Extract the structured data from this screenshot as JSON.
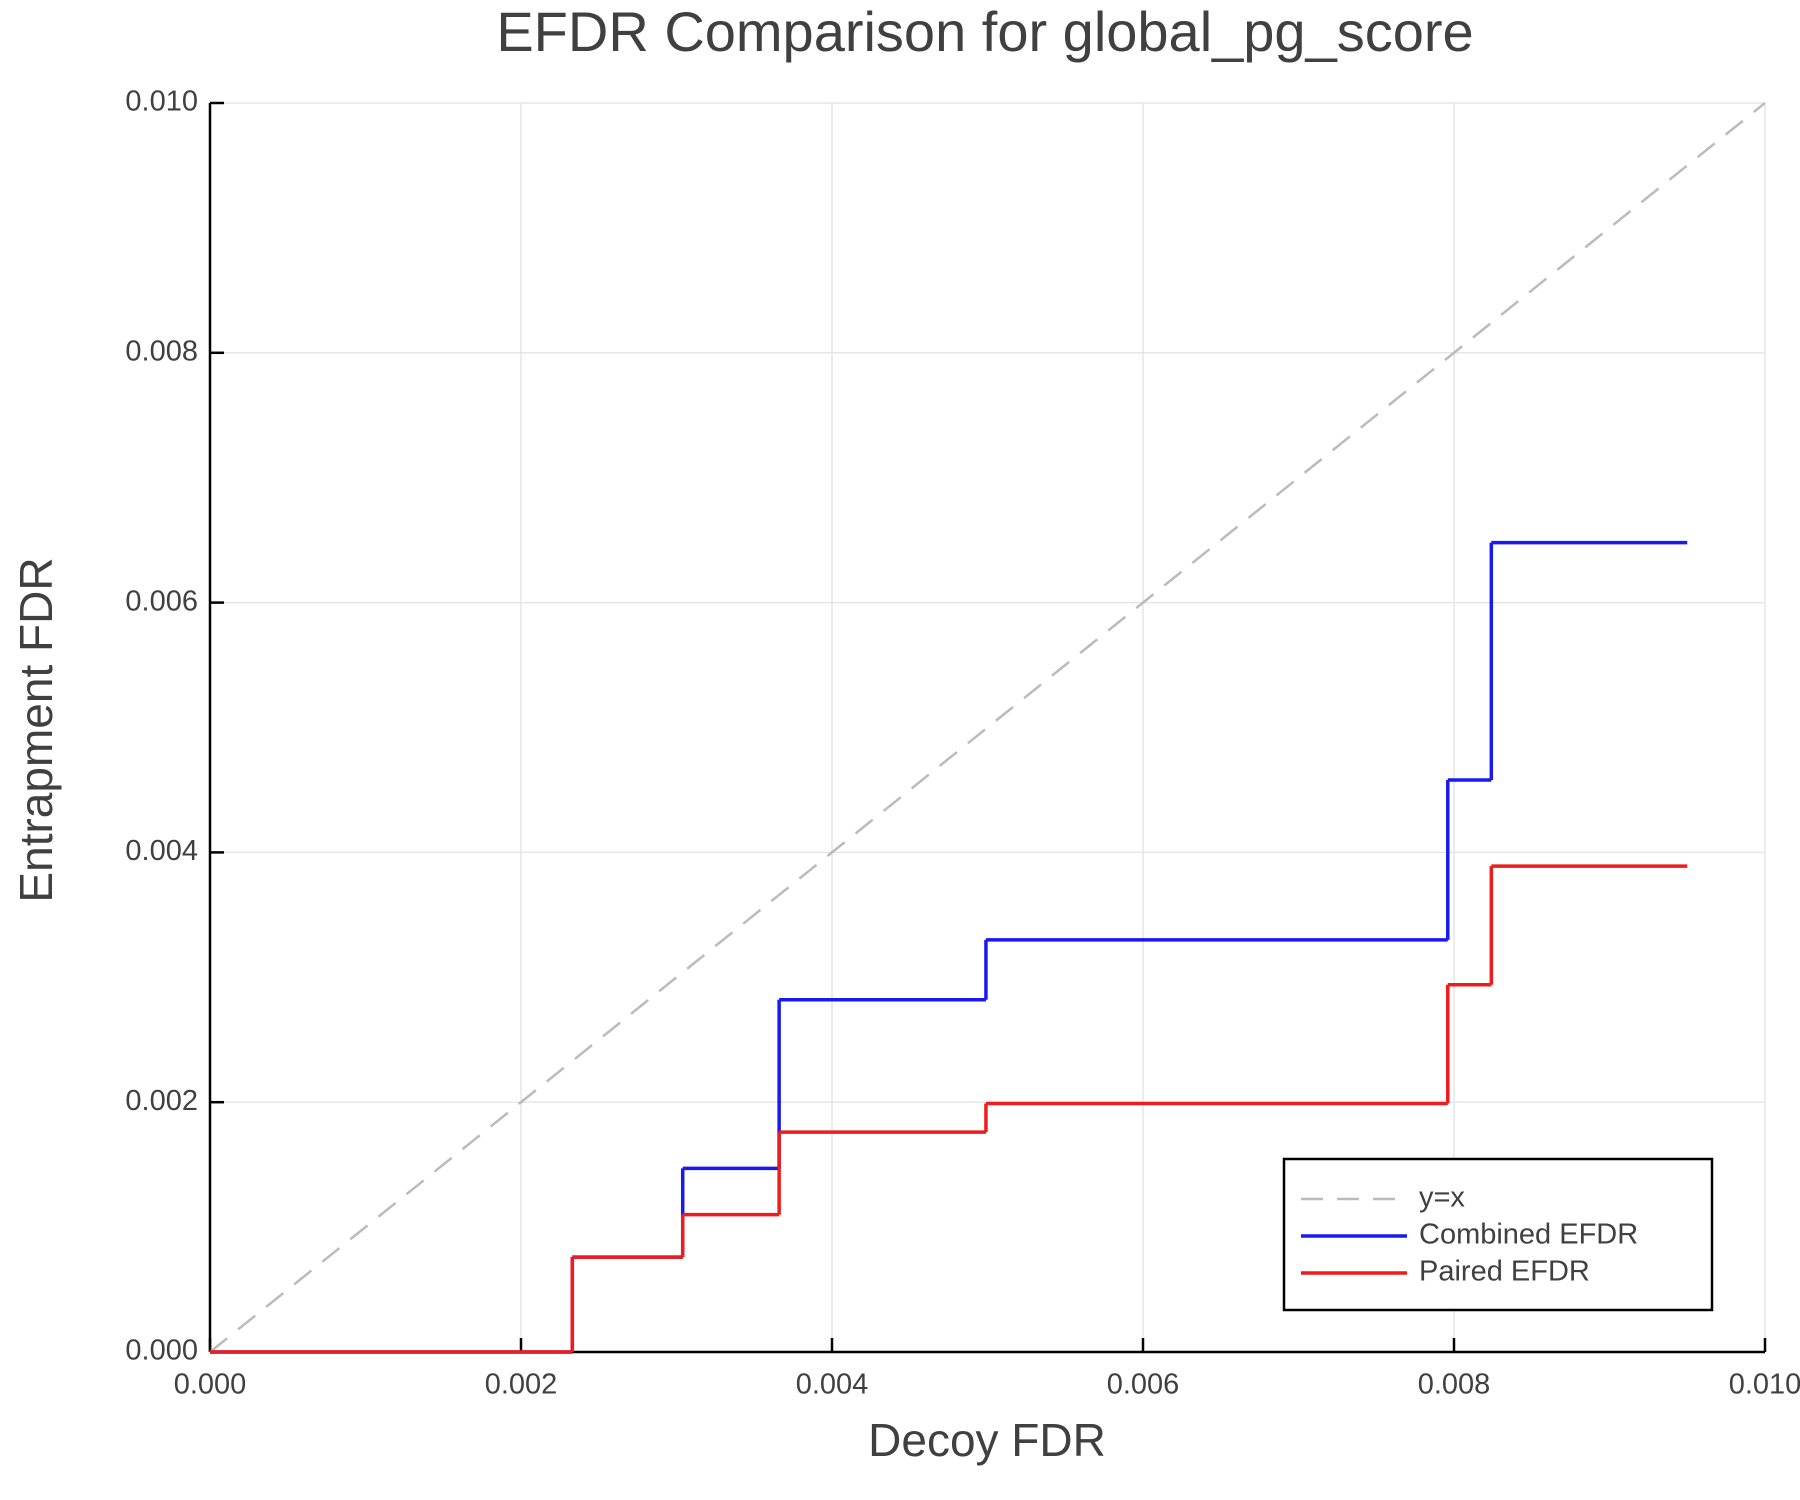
{
  "chart_data": {
    "type": "step",
    "title": "EFDR Comparison for global_pg_score",
    "x_label": "Decoy FDR",
    "y_label": "Entrapment FDR",
    "xlim": [
      0,
      0.01
    ],
    "ylim": [
      0,
      0.01
    ],
    "xticks": [
      {
        "value": 0,
        "label": "0.000"
      },
      {
        "value": 0.002,
        "label": "0.002"
      },
      {
        "value": 0.004,
        "label": "0.004"
      },
      {
        "value": 0.006,
        "label": "0.006"
      },
      {
        "value": 0.008,
        "label": "0.008"
      },
      {
        "value": 0.01,
        "label": "0.010"
      }
    ],
    "yticks": [
      {
        "value": 0,
        "label": "0.000"
      },
      {
        "value": 0.002,
        "label": "0.002"
      },
      {
        "value": 0.004,
        "label": "0.004"
      },
      {
        "value": 0.006,
        "label": "0.006"
      },
      {
        "value": 0.008,
        "label": "0.008"
      },
      {
        "value": 0.01,
        "label": "0.010"
      }
    ],
    "grid": true,
    "legend": "lower right",
    "series": [
      {
        "name": "y=x",
        "color": "#bbbbbb",
        "dashed": true,
        "x": [
          0,
          0.01
        ],
        "values": [
          0,
          0.01
        ]
      },
      {
        "name": "Combined EFDR",
        "color": "#1a1aee",
        "dashed": false,
        "x": [
          0,
          0.00233,
          0.00304,
          0.00366,
          0.00499,
          0.00796,
          0.00824,
          0.0095
        ],
        "values": [
          0,
          0.00076,
          0.00147,
          0.00282,
          0.0033,
          0.00458,
          0.00648,
          0.00648
        ]
      },
      {
        "name": "Paired EFDR",
        "color": "#ee1c1c",
        "dashed": false,
        "x": [
          0,
          0.00233,
          0.00304,
          0.00366,
          0.00499,
          0.00796,
          0.00824,
          0.0095
        ],
        "values": [
          0,
          0.00076,
          0.0011,
          0.00176,
          0.00199,
          0.00294,
          0.00389,
          0.00389
        ]
      }
    ]
  }
}
